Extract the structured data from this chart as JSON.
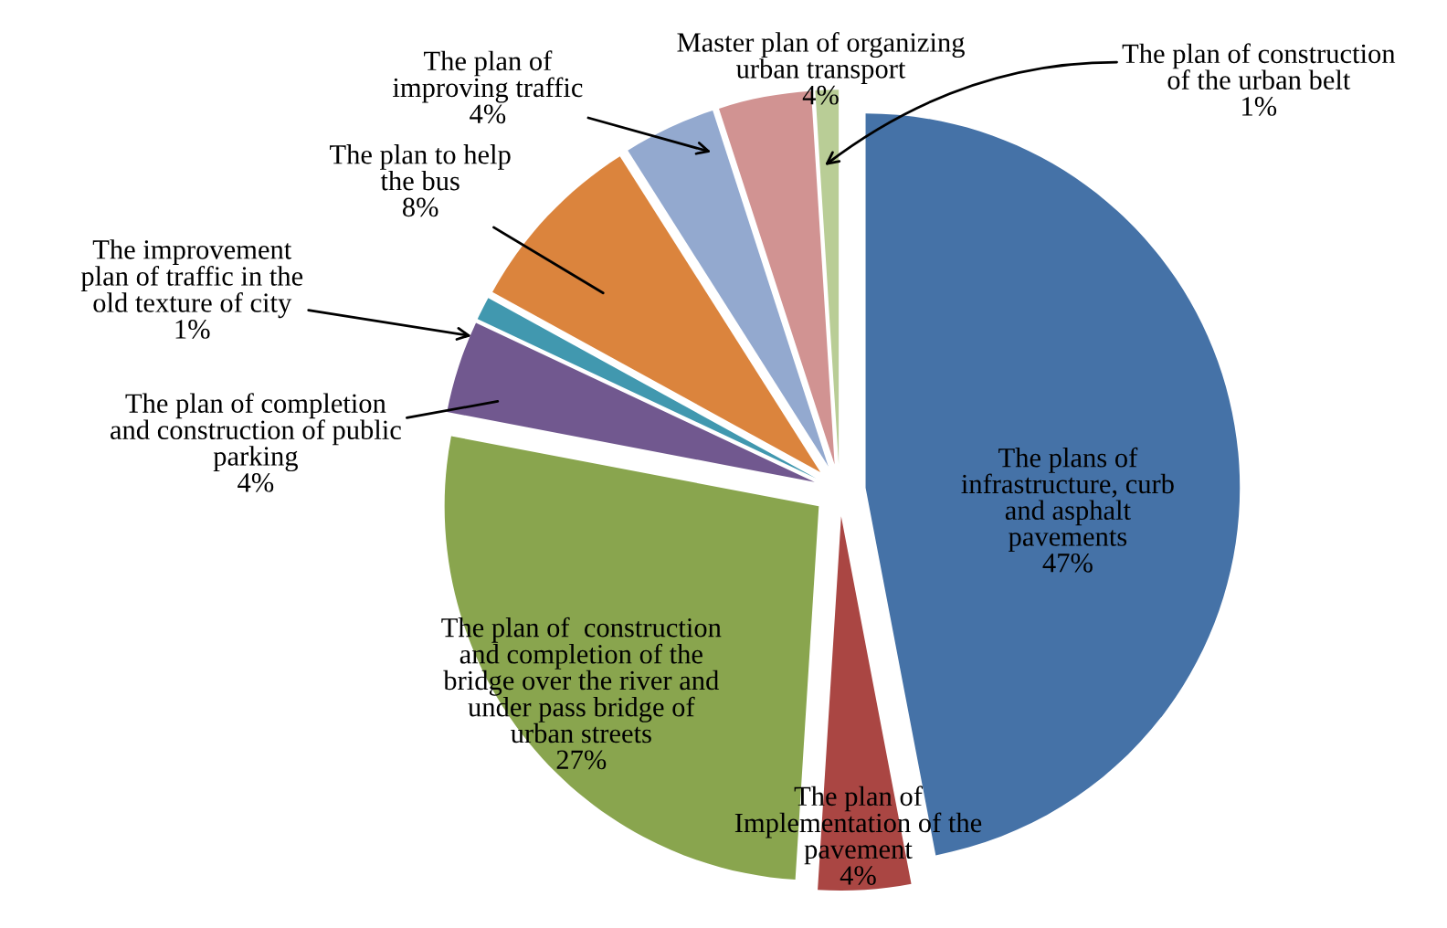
{
  "chart_data": {
    "type": "pie",
    "categories": [
      "The plans of\ninfrastructure, curb\nand asphalt\npavements",
      "The plan of\nImplementation of the\npavement",
      "The plan of  construction\nand completion of the\nbridge over the river and\nunder pass bridge of\nurban streets",
      "The plan of completion\nand construction of public\nparking",
      "The improvement\nplan of traffic in the\nold texture of city",
      "The plan to help\nthe bus",
      "The plan of\nimproving traffic",
      "Master plan of organizing\nurban transport",
      "The plan of construction\nof the urban belt"
    ],
    "values": [
      47,
      4,
      27,
      4,
      1,
      8,
      4,
      4,
      1
    ],
    "value_labels": [
      "47%",
      "4%",
      "27%",
      "4%",
      "1%",
      "8%",
      "4%",
      "4%",
      "1%"
    ],
    "colors": [
      "#4572a7",
      "#aa4643",
      "#89a54e",
      "#71588f",
      "#4198af",
      "#db843d",
      "#93a9cf",
      "#d19392",
      "#b9cd96"
    ]
  }
}
